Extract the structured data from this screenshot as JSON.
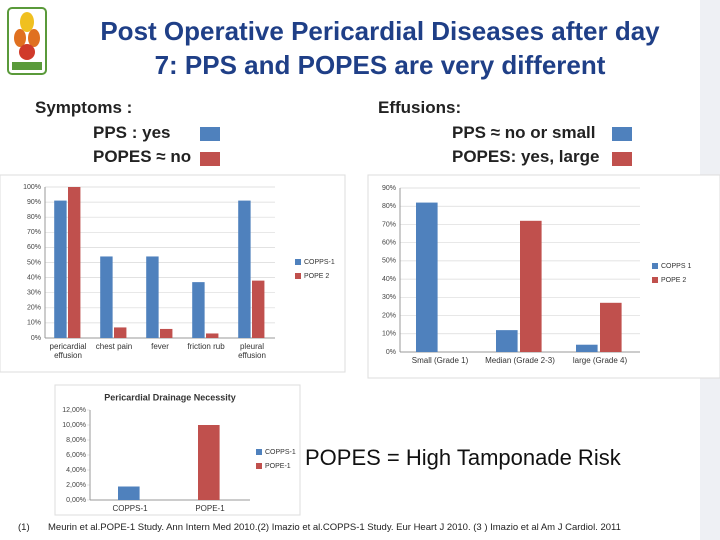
{
  "title_lines": [
    "Post Operative Pericardial Diseases after day",
    "7: PPS and POPES are very different"
  ],
  "symptoms": {
    "heading": "Symptoms :",
    "pps": "PPS : yes",
    "popes": "POPES ≈ no"
  },
  "effusions": {
    "heading": "Effusions:",
    "pps": "PPS ≈ no or small",
    "popes": "POPES: yes, large"
  },
  "conclusion": "POPES = High  Tamponade Risk",
  "footnote": {
    "marker": "(1)",
    "text": "Meurin et al.POPE-1 Study. Ann Intern Med 2010.(2) Imazio et al.COPPS-1 Study. Eur Heart J 2010. (3 ) Imazio et al Am J Cardiol. 2011"
  },
  "chart_data": [
    {
      "type": "bar",
      "grid": true,
      "legend": "right",
      "categories": [
        "pericardial effusion",
        "chest pain",
        "fever",
        "friction rub",
        "pleural effusion"
      ],
      "series": [
        {
          "name": "COPPS-1",
          "color": "#4f81bd",
          "values": [
            91,
            54,
            54,
            37,
            91
          ]
        },
        {
          "name": "POPE 2",
          "color": "#c0504d",
          "values": [
            100,
            7,
            6,
            3,
            38
          ]
        }
      ],
      "ylim": [
        0,
        100
      ],
      "yticks": [
        {
          "value": 0,
          "label": "0%"
        },
        {
          "value": 10,
          "label": "10%"
        },
        {
          "value": 20,
          "label": "20%"
        },
        {
          "value": 30,
          "label": "30%"
        },
        {
          "value": 40,
          "label": "40%"
        },
        {
          "value": 50,
          "label": "50%"
        },
        {
          "value": 60,
          "label": "60%"
        },
        {
          "value": 70,
          "label": "70%"
        },
        {
          "value": 80,
          "label": "80%"
        },
        {
          "value": 90,
          "label": "90%"
        },
        {
          "value": 100,
          "label": "100%"
        }
      ]
    },
    {
      "type": "bar",
      "grid": true,
      "legend": "right",
      "categories": [
        "Small (Grade 1)",
        "Median (Grade 2-3)",
        "large (Grade 4)"
      ],
      "series": [
        {
          "name": "COPPS 1",
          "color": "#4f81bd",
          "values": [
            82,
            12,
            4
          ]
        },
        {
          "name": "POPE 2",
          "color": "#c0504d",
          "values": [
            0,
            72,
            27
          ]
        }
      ],
      "ylim": [
        0,
        90
      ],
      "yticks": [
        {
          "value": 0,
          "label": "0%"
        },
        {
          "value": 10,
          "label": "10%"
        },
        {
          "value": 20,
          "label": "20%"
        },
        {
          "value": 30,
          "label": "30%"
        },
        {
          "value": 40,
          "label": "40%"
        },
        {
          "value": 50,
          "label": "50%"
        },
        {
          "value": 60,
          "label": "60%"
        },
        {
          "value": 70,
          "label": "70%"
        },
        {
          "value": 80,
          "label": "80%"
        },
        {
          "value": 90,
          "label": "90%"
        }
      ]
    },
    {
      "type": "bar",
      "grid": false,
      "legend": "right",
      "title": "Pericardial Drainage Necessity",
      "categories": [
        "COPPS-1",
        "POPE-1"
      ],
      "series": [
        {
          "name": "COPPS-1",
          "color": "#4f81bd",
          "values": [
            1.8,
            null
          ]
        },
        {
          "name": "POPE-1",
          "color": "#c0504d",
          "values": [
            null,
            10
          ]
        }
      ],
      "ylim": [
        0,
        12
      ],
      "yticks": [
        {
          "value": 0,
          "label": "0,00%"
        },
        {
          "value": 2,
          "label": "2,00%"
        },
        {
          "value": 4,
          "label": "4,00%"
        },
        {
          "value": 6,
          "label": "6,00%"
        },
        {
          "value": 8,
          "label": "8,00%"
        },
        {
          "value": 10,
          "label": "10,00%"
        },
        {
          "value": 12,
          "label": "12,00%"
        }
      ]
    }
  ]
}
